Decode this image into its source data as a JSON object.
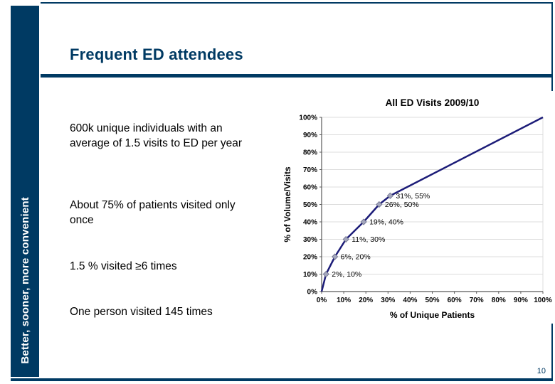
{
  "slide": {
    "title": "Frequent ED attendees",
    "sidebar_text": "Better, sooner, more convenient",
    "page_number": "10",
    "bullets": [
      "600k unique individuals with an average of 1.5 visits to ED per year",
      "About 75% of patients visited only once",
      "1.5 % visited ≥6 times",
      "One person visited 145 times"
    ]
  },
  "colors": {
    "navy": "#003A63",
    "chart_line": "#1C1C78",
    "grid": "#DCDCDC",
    "axis": "#595959",
    "marker_fill": "#A3A6BD",
    "marker_stroke": "#6B6E8A",
    "chart_text": "#000000"
  },
  "chart_data": {
    "type": "line",
    "title": "All ED Visits 2009/10",
    "xlabel": "% of Unique Patients",
    "ylabel": "% of Volume/Visits",
    "xlim": [
      0,
      100
    ],
    "ylim": [
      0,
      100
    ],
    "x_tick_labels": [
      "0%",
      "10%",
      "20%",
      "30%",
      "40%",
      "50%",
      "60%",
      "70%",
      "80%",
      "90%",
      "100%"
    ],
    "y_tick_labels": [
      "0%",
      "10%",
      "20%",
      "30%",
      "40%",
      "50%",
      "60%",
      "70%",
      "80%",
      "90%",
      "100%"
    ],
    "grid": "horizontal",
    "legend": "none",
    "series": [
      {
        "name": "All ED Visits 2009/10",
        "points": [
          [
            0,
            0
          ],
          [
            2,
            10
          ],
          [
            6,
            20
          ],
          [
            11,
            30
          ],
          [
            19,
            40
          ],
          [
            26,
            50
          ],
          [
            31,
            55
          ],
          [
            100,
            100
          ]
        ]
      }
    ],
    "point_labels": [
      {
        "x": 2,
        "y": 10,
        "label": "2%, 10%"
      },
      {
        "x": 6,
        "y": 20,
        "label": "6%, 20%"
      },
      {
        "x": 11,
        "y": 30,
        "label": "11%, 30%"
      },
      {
        "x": 19,
        "y": 40,
        "label": "19%, 40%"
      },
      {
        "x": 26,
        "y": 50,
        "label": "26%, 50%"
      },
      {
        "x": 31,
        "y": 55,
        "label": "31%, 55%"
      }
    ]
  }
}
